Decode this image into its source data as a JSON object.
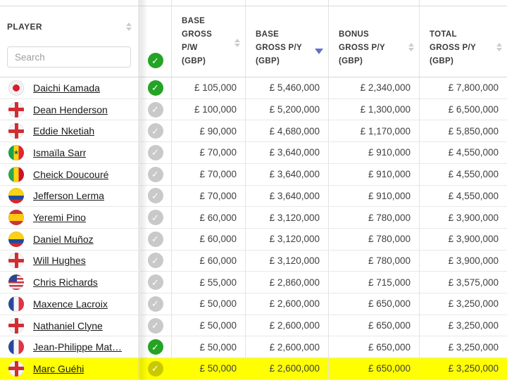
{
  "table": {
    "player_header": "PLAYER",
    "search": {
      "placeholder": "Search",
      "value": ""
    },
    "select_all_checked": true,
    "columns": [
      {
        "id": "base-gross-pw",
        "lines": [
          "BASE",
          "GROSS",
          "P/W",
          "(GBP)"
        ],
        "sort": "unsorted"
      },
      {
        "id": "base-gross-py",
        "lines": [
          "BASE",
          "GROSS P/Y",
          "(GBP)"
        ],
        "sort": "desc"
      },
      {
        "id": "bonus-gross-py",
        "lines": [
          "BONUS",
          "GROSS P/Y",
          "(GBP)"
        ],
        "sort": "unsorted"
      },
      {
        "id": "total-gross-py",
        "lines": [
          "TOTAL",
          "GROSS P/Y",
          "(GBP)"
        ],
        "sort": "unsorted"
      }
    ],
    "rows": [
      {
        "name": "Daichi Kamada",
        "flag": "japan",
        "selected": true,
        "highlighted": false,
        "pw": "£ 105,000",
        "py": "£ 5,460,000",
        "bonus": "£ 2,340,000",
        "total": "£ 7,800,000"
      },
      {
        "name": "Dean Henderson",
        "flag": "england",
        "selected": false,
        "highlighted": false,
        "pw": "£ 100,000",
        "py": "£ 5,200,000",
        "bonus": "£ 1,300,000",
        "total": "£ 6,500,000"
      },
      {
        "name": "Eddie Nketiah",
        "flag": "england",
        "selected": false,
        "highlighted": false,
        "pw": "£ 90,000",
        "py": "£ 4,680,000",
        "bonus": "£ 1,170,000",
        "total": "£ 5,850,000"
      },
      {
        "name": "Ismaïla Sarr",
        "flag": "senegal",
        "selected": false,
        "highlighted": false,
        "pw": "£ 70,000",
        "py": "£ 3,640,000",
        "bonus": "£ 910,000",
        "total": "£ 4,550,000"
      },
      {
        "name": "Cheick Doucouré",
        "flag": "mali",
        "selected": false,
        "highlighted": false,
        "pw": "£ 70,000",
        "py": "£ 3,640,000",
        "bonus": "£ 910,000",
        "total": "£ 4,550,000"
      },
      {
        "name": "Jefferson Lerma",
        "flag": "colombia",
        "selected": false,
        "highlighted": false,
        "pw": "£ 70,000",
        "py": "£ 3,640,000",
        "bonus": "£ 910,000",
        "total": "£ 4,550,000"
      },
      {
        "name": "Yeremi Pino",
        "flag": "spain",
        "selected": false,
        "highlighted": false,
        "pw": "£ 60,000",
        "py": "£ 3,120,000",
        "bonus": "£ 780,000",
        "total": "£ 3,900,000"
      },
      {
        "name": "Daniel Muñoz",
        "flag": "colombia",
        "selected": false,
        "highlighted": false,
        "pw": "£ 60,000",
        "py": "£ 3,120,000",
        "bonus": "£ 780,000",
        "total": "£ 3,900,000"
      },
      {
        "name": "Will Hughes",
        "flag": "england",
        "selected": false,
        "highlighted": false,
        "pw": "£ 60,000",
        "py": "£ 3,120,000",
        "bonus": "£ 780,000",
        "total": "£ 3,900,000"
      },
      {
        "name": "Chris Richards",
        "flag": "usa",
        "selected": false,
        "highlighted": false,
        "pw": "£ 55,000",
        "py": "£ 2,860,000",
        "bonus": "£ 715,000",
        "total": "£ 3,575,000"
      },
      {
        "name": "Maxence Lacroix",
        "flag": "france",
        "selected": false,
        "highlighted": false,
        "pw": "£ 50,000",
        "py": "£ 2,600,000",
        "bonus": "£ 650,000",
        "total": "£ 3,250,000"
      },
      {
        "name": "Nathaniel Clyne",
        "flag": "england",
        "selected": false,
        "highlighted": false,
        "pw": "£ 50,000",
        "py": "£ 2,600,000",
        "bonus": "£ 650,000",
        "total": "£ 3,250,000"
      },
      {
        "name": "Jean-Philippe Mat…",
        "flag": "france",
        "selected": true,
        "highlighted": false,
        "pw": "£ 50,000",
        "py": "£ 2,600,000",
        "bonus": "£ 650,000",
        "total": "£ 3,250,000"
      },
      {
        "name": "Marc Guéhi",
        "flag": "england",
        "selected": false,
        "highlighted": true,
        "pw": "£ 50,000",
        "py": "£ 2,600,000",
        "bonus": "£ 650,000",
        "total": "£ 3,250,000"
      }
    ]
  },
  "icons": {
    "check": "✓",
    "star": "★"
  },
  "colors": {
    "checked_green": "#25a325",
    "unchecked_gray": "#c9c9c9",
    "sort_active_blue": "#6570c7",
    "highlight_yellow": "#ffff00"
  }
}
